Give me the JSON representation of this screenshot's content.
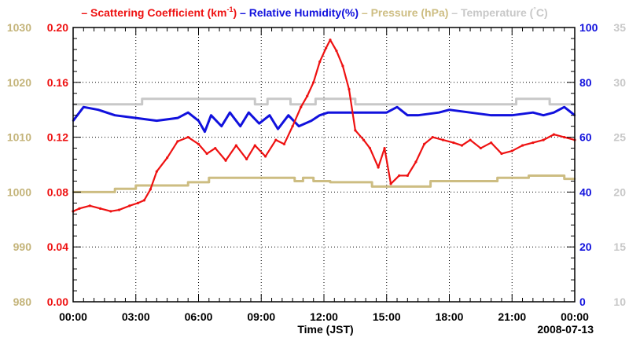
{
  "chart_data": {
    "type": "line",
    "date_label": "2008-07-13",
    "xlabel": "Time (JST)",
    "x_unit": "hours",
    "xlim": [
      0,
      24
    ],
    "x_ticks": [
      {
        "value": 0,
        "label": "00:00"
      },
      {
        "value": 3,
        "label": "03:00"
      },
      {
        "value": 6,
        "label": "06:00"
      },
      {
        "value": 9,
        "label": "09:00"
      },
      {
        "value": 12,
        "label": "12:00"
      },
      {
        "value": 15,
        "label": "15:00"
      },
      {
        "value": 18,
        "label": "18:00"
      },
      {
        "value": 21,
        "label": "21:00"
      },
      {
        "value": 24,
        "label": "00:00"
      }
    ],
    "grid": true,
    "legend": {
      "position": "top",
      "items": [
        {
          "prefix": "– ",
          "label": "Scattering Coefficient (km",
          "sup": "-1",
          "suffix": ")",
          "color": "#ee1111"
        },
        {
          "prefix": " – ",
          "label": "Relative Humidity(%)",
          "sup": "",
          "suffix": "",
          "color": "#1111dd"
        },
        {
          "prefix": " – ",
          "label": "Pressure (hPa)",
          "sup": "",
          "suffix": "",
          "color": "#cdbd82"
        },
        {
          "prefix": " – ",
          "label": "Temperature (",
          "sup": "°",
          "suffix": "C)",
          "color": "#c8c8c8"
        }
      ]
    },
    "axes": {
      "pressure": {
        "side": "left-outer",
        "color": "#c4b47a",
        "ylim": [
          980,
          1030
        ],
        "ticks": [
          980,
          990,
          1000,
          1010,
          1020,
          1030
        ],
        "tick_labels": [
          "980",
          "990",
          "1000",
          "1010",
          "1020",
          "1030"
        ]
      },
      "scattering": {
        "side": "left-inner",
        "color": "#ee1111",
        "ylim": [
          0,
          0.2
        ],
        "ticks": [
          0,
          0.04,
          0.08,
          0.12,
          0.16,
          0.2
        ],
        "tick_labels": [
          "0.00",
          "0.04",
          "0.08",
          "0.12",
          "0.16",
          "0.20"
        ]
      },
      "humidity": {
        "side": "right-inner",
        "color": "#1111dd",
        "ylim": [
          0,
          100
        ],
        "ticks": [
          0,
          20,
          40,
          60,
          80,
          100
        ],
        "tick_labels": [
          "0",
          "20",
          "40",
          "60",
          "80",
          "100"
        ]
      },
      "temperature": {
        "side": "right-outer",
        "color": "#c8c8c8",
        "ylim": [
          10,
          35
        ],
        "ticks": [
          10,
          15,
          20,
          25,
          30,
          35
        ],
        "tick_labels": [
          "10",
          "15",
          "20",
          "25",
          "30",
          "35"
        ]
      }
    },
    "series": [
      {
        "name": "Temperature",
        "axis": "temperature",
        "color": "#c8c8c8",
        "x": [
          0,
          3.3,
          3.3,
          8.7,
          8.7,
          9.3,
          9.3,
          10.4,
          10.4,
          11.6,
          11.6,
          13.5,
          13.5,
          21.2,
          21.2,
          22.8,
          22.8,
          24
        ],
        "y": [
          28,
          28,
          28.5,
          28.5,
          28,
          28,
          28.5,
          28.5,
          28,
          28,
          28.5,
          28.5,
          28,
          28,
          28.5,
          28.5,
          28,
          28
        ]
      },
      {
        "name": "Relative Humidity",
        "axis": "humidity",
        "color": "#1111dd",
        "x": [
          0,
          0.5,
          1.2,
          2.0,
          3.0,
          4.0,
          5.0,
          5.5,
          6.0,
          6.3,
          6.6,
          7.1,
          7.5,
          8.0,
          8.4,
          8.9,
          9.4,
          9.8,
          10.3,
          10.8,
          11.4,
          11.8,
          12.2,
          13.0,
          14.0,
          15.0,
          15.5,
          16.0,
          16.5,
          17.5,
          18.0,
          19.0,
          20.0,
          21.0,
          22.0,
          22.5,
          23.0,
          23.5,
          24
        ],
        "y": [
          66,
          71,
          70,
          68,
          67,
          66,
          67,
          69,
          66,
          62,
          68,
          64,
          69,
          64,
          69,
          65,
          68,
          63,
          68,
          64,
          66,
          68,
          69,
          69,
          69,
          69,
          71,
          68,
          68,
          69,
          70,
          69,
          68,
          68,
          69,
          68,
          69,
          71,
          68
        ]
      },
      {
        "name": "Pressure",
        "axis": "pressure",
        "color": "#cdbd82",
        "x": [
          0,
          2.0,
          2.0,
          3.0,
          3.0,
          5.5,
          5.5,
          6.5,
          6.5,
          10.6,
          10.6,
          11.0,
          11.0,
          11.5,
          11.5,
          12.3,
          12.3,
          14.3,
          14.3,
          17.1,
          17.1,
          20.3,
          20.3,
          21.8,
          21.8,
          23.5,
          23.5,
          24
        ],
        "y": [
          1000,
          1000,
          1000.6,
          1000.6,
          1001.2,
          1001.2,
          1001.8,
          1001.8,
          1002.6,
          1002.6,
          1002.0,
          1002.0,
          1002.6,
          1002.6,
          1002.0,
          1002.0,
          1001.8,
          1001.8,
          1001.0,
          1001.0,
          1002.0,
          1002.0,
          1002.6,
          1002.6,
          1003.0,
          1003.0,
          1002.4,
          1002.4
        ]
      },
      {
        "name": "Scattering Coefficient",
        "axis": "scattering",
        "color": "#ee1111",
        "x": [
          0,
          0.3,
          0.8,
          1.3,
          1.8,
          2.2,
          2.7,
          3.1,
          3.4,
          3.7,
          4.0,
          4.5,
          5.0,
          5.5,
          6.0,
          6.4,
          6.8,
          7.3,
          7.8,
          8.3,
          8.7,
          9.2,
          9.7,
          10.1,
          10.5,
          10.9,
          11.2,
          11.5,
          11.8,
          12.1,
          12.3,
          12.6,
          12.9,
          13.2,
          13.5,
          13.9,
          14.2,
          14.6,
          14.9,
          15.2,
          15.6,
          16.0,
          16.4,
          16.8,
          17.2,
          17.7,
          18.2,
          18.6,
          19.0,
          19.5,
          20.0,
          20.5,
          21.0,
          21.5,
          22.0,
          22.5,
          23.0,
          23.5,
          24
        ],
        "y": [
          0.066,
          0.068,
          0.07,
          0.068,
          0.066,
          0.067,
          0.07,
          0.072,
          0.074,
          0.082,
          0.095,
          0.105,
          0.117,
          0.12,
          0.115,
          0.108,
          0.112,
          0.103,
          0.114,
          0.104,
          0.114,
          0.106,
          0.118,
          0.115,
          0.128,
          0.142,
          0.15,
          0.16,
          0.175,
          0.185,
          0.191,
          0.183,
          0.172,
          0.155,
          0.125,
          0.118,
          0.112,
          0.098,
          0.112,
          0.086,
          0.092,
          0.092,
          0.102,
          0.115,
          0.12,
          0.118,
          0.116,
          0.114,
          0.118,
          0.112,
          0.116,
          0.108,
          0.11,
          0.114,
          0.116,
          0.118,
          0.122,
          0.12,
          0.118
        ]
      }
    ]
  }
}
